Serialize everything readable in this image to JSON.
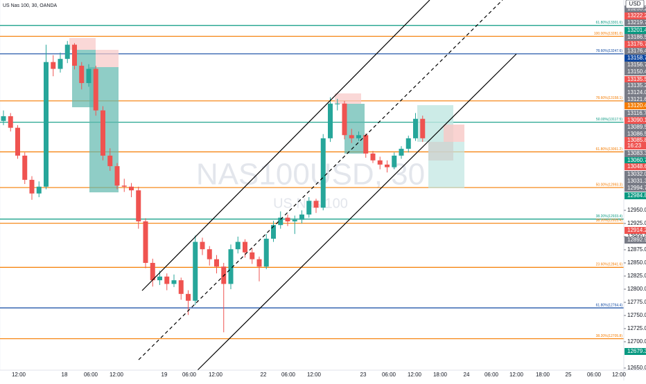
{
  "chart_data": {
    "type": "candlestick",
    "symbol_legend": "US Nas 100, 30, OANDA",
    "watermark": "NAS100USD, 30",
    "watermark_sub": "US Nas 100",
    "currency": "USD",
    "colors": {
      "up": "#26a69a",
      "down": "#ef5350"
    },
    "ylim": [
      12646,
      13350
    ],
    "yticks": [
      {
        "value": 12650,
        "label": "12650.0"
      },
      {
        "value": 12700,
        "label": "12700.0"
      },
      {
        "value": 12725,
        "label": "12725.0"
      },
      {
        "value": 12750,
        "label": "12750.0"
      },
      {
        "value": 12775,
        "label": "12775.0"
      },
      {
        "value": 12800,
        "label": "12800.0"
      },
      {
        "value": 12825,
        "label": "12825.0"
      },
      {
        "value": 12850,
        "label": "12850.0"
      },
      {
        "value": 12875,
        "label": "12875.0"
      },
      {
        "value": 12900,
        "label": "12900.0"
      },
      {
        "value": 12925,
        "label": "12925.0"
      },
      {
        "value": 12950,
        "label": "12950.0"
      }
    ],
    "time_labels": [
      "12:00",
      "18",
      "06:00",
      "12:00",
      "19",
      "06:00",
      "12:00",
      "22",
      "06:00",
      "12:00",
      "23",
      "06:00",
      "12:00",
      "18:00",
      "24",
      "06:00",
      "12:00",
      "18:00",
      "25",
      "06:00",
      "12:00"
    ],
    "levels": [
      {
        "label": "61.80%(13301.6)",
        "value": 13301.6,
        "color": "#089981"
      },
      {
        "label": "100.00%(13281.0)",
        "value": 13281.0,
        "color": "#f57c00"
      },
      {
        "label": "78.60%(13247.6)",
        "value": 13247.6,
        "color": "#0d47a1"
      },
      {
        "label": "78.60%(13158.1)",
        "value": 13158.1,
        "color": "#f57c00"
      },
      {
        "label": "50.00%(13117.5)",
        "value": 13117.5,
        "color": "#089981"
      },
      {
        "label": "61.80%(13061.2)",
        "value": 13061.2,
        "color": "#f57c00"
      },
      {
        "label": "50.00%(12993.3)",
        "value": 12993.3,
        "color": "#f57c00"
      },
      {
        "label": "38.20%(12933.4)",
        "value": 12933.4,
        "color": "#089981"
      },
      {
        "label": "38.20%(12925.4)",
        "value": 12925.4,
        "color": "#f57c00"
      },
      {
        "label": "23.60%(12841.6)",
        "value": 12841.6,
        "color": "#f57c00"
      },
      {
        "label": "61.80%(12764.4)",
        "value": 12764.4,
        "color": "#0d47a1"
      },
      {
        "label": "38.20%(12705.8)",
        "value": 12705.8,
        "color": "#f57c00"
      }
    ],
    "price_tags": [
      {
        "label": "13233.2",
        "color": "#787b86"
      },
      {
        "label": "13222.2",
        "color": "#ef5350"
      },
      {
        "label": "13219.7",
        "color": "#787b86"
      },
      {
        "label": "13201.4",
        "color": "#089981"
      },
      {
        "label": "13186.5",
        "color": "#787b86"
      },
      {
        "label": "13176.7",
        "color": "#ef5350"
      },
      {
        "label": "13176.4",
        "color": "#787b86"
      },
      {
        "label": "13158.7",
        "color": "#0d47a1"
      },
      {
        "label": "13156.7",
        "color": "#787b86"
      },
      {
        "label": "13150.4",
        "color": "#787b86"
      },
      {
        "label": "13135.5",
        "color": "#ef5350"
      },
      {
        "label": "13135.2",
        "color": "#787b86"
      },
      {
        "label": "13124.0",
        "color": "#787b86"
      },
      {
        "label": "13121.6",
        "color": "#787b86"
      },
      {
        "label": "13120.4",
        "color": "#f57c00"
      },
      {
        "label": "13116.7",
        "color": "#787b86"
      },
      {
        "label": "13090.1",
        "color": "#ef5350"
      },
      {
        "label": "13089.5",
        "color": "#787b86"
      },
      {
        "label": "13086.5",
        "color": "#787b86"
      },
      {
        "label": "13085.8",
        "color": "#ef5350"
      },
      {
        "label": "16:23",
        "color": "#ef5350"
      },
      {
        "label": "13083.3",
        "color": "#787b86"
      },
      {
        "label": "13060.7",
        "color": "#089981"
      },
      {
        "label": "13048.6",
        "color": "#ef5350"
      },
      {
        "label": "13032.0",
        "color": "#787b86"
      },
      {
        "label": "13031.3",
        "color": "#787b86"
      },
      {
        "label": "12994.7",
        "color": "#787b86"
      },
      {
        "label": "12984.8",
        "color": "#089981"
      },
      {
        "label": "12914.2",
        "color": "#ef5350"
      },
      {
        "label": "12892.9",
        "color": "#787b86"
      },
      {
        "label": "12679.3",
        "color": "#089981"
      }
    ],
    "ohlc": [
      [
        13120,
        13140,
        13112,
        13129
      ],
      [
        13129,
        13135,
        13100,
        13107
      ],
      [
        13107,
        13112,
        13048,
        13054
      ],
      [
        13054,
        13060,
        13000,
        13008
      ],
      [
        13008,
        13015,
        12970,
        12982
      ],
      [
        12982,
        13005,
        12975,
        12995
      ],
      [
        12995,
        13265,
        12990,
        13232
      ],
      [
        13232,
        13245,
        13205,
        13219
      ],
      [
        13219,
        13250,
        13212,
        13238
      ],
      [
        13238,
        13272,
        13230,
        13265
      ],
      [
        13265,
        13268,
        13218,
        13225
      ],
      [
        13225,
        13232,
        13180,
        13192
      ],
      [
        13192,
        13228,
        13185,
        13219
      ],
      [
        13219,
        13225,
        13130,
        13140
      ],
      [
        13140,
        13148,
        13045,
        13054
      ],
      [
        13054,
        13068,
        13025,
        13034
      ],
      [
        13034,
        13040,
        12990,
        12997
      ],
      [
        12997,
        13010,
        12985,
        12995
      ],
      [
        12995,
        13002,
        12975,
        12988
      ],
      [
        12988,
        12995,
        12915,
        12929
      ],
      [
        12929,
        12935,
        12840,
        12850
      ],
      [
        12850,
        12858,
        12805,
        12817
      ],
      [
        12817,
        12835,
        12808,
        12824
      ],
      [
        12824,
        12830,
        12798,
        12810
      ],
      [
        12810,
        12828,
        12804,
        12817
      ],
      [
        12817,
        12822,
        12780,
        12791
      ],
      [
        12791,
        12798,
        12751,
        12778
      ],
      [
        12778,
        12902,
        12770,
        12890
      ],
      [
        12890,
        12898,
        12865,
        12876
      ],
      [
        12876,
        12882,
        12845,
        12857
      ],
      [
        12857,
        12865,
        12830,
        12843
      ],
      [
        12843,
        12850,
        12718,
        12810
      ],
      [
        12810,
        12885,
        12800,
        12876
      ],
      [
        12876,
        12900,
        12868,
        12890
      ],
      [
        12890,
        12895,
        12860,
        12870
      ],
      [
        12870,
        12878,
        12848,
        12857
      ],
      [
        12857,
        12862,
        12815,
        12843
      ],
      [
        12843,
        12905,
        12838,
        12896
      ],
      [
        12896,
        12930,
        12890,
        12922
      ],
      [
        12922,
        12948,
        12915,
        12936
      ],
      [
        12936,
        12942,
        12920,
        12929
      ],
      [
        12929,
        12940,
        12905,
        12932
      ],
      [
        12932,
        12950,
        12925,
        12942
      ],
      [
        12942,
        12975,
        12936,
        12968
      ],
      [
        12968,
        12972,
        12945,
        12955
      ],
      [
        12955,
        13095,
        12950,
        13087
      ],
      [
        13087,
        13165,
        13080,
        13153
      ],
      [
        13153,
        13162,
        13140,
        13153
      ],
      [
        13153,
        13158,
        13085,
        13093
      ],
      [
        13093,
        13105,
        13078,
        13087
      ],
      [
        13087,
        13100,
        13082,
        13093
      ],
      [
        13093,
        13096,
        13050,
        13058
      ],
      [
        13058,
        13063,
        13040,
        13045
      ],
      [
        13045,
        13052,
        13028,
        13037
      ],
      [
        13037,
        13045,
        13022,
        13032
      ],
      [
        13032,
        13060,
        13028,
        13054
      ],
      [
        13054,
        13072,
        13048,
        13067
      ],
      [
        13067,
        13092,
        13060,
        13087
      ],
      [
        13087,
        13135,
        13082,
        13124
      ],
      [
        13124,
        13130,
        13080,
        13087
      ]
    ]
  }
}
